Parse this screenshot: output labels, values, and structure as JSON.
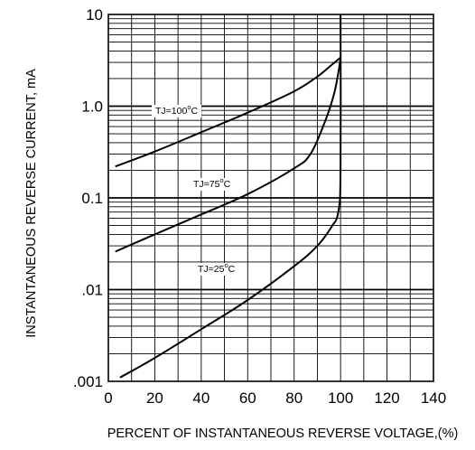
{
  "chart_data": {
    "type": "line",
    "title": "",
    "xlabel": "PERCENT OF INSTANTANEOUS REVERSE VOLTAGE,(%)",
    "ylabel": "INSTANTANEOUS REVERSE CURRENT, mA",
    "xlim": [
      0,
      140
    ],
    "ylim": [
      0.001,
      10
    ],
    "yscale": "log",
    "grid": true,
    "x_ticks": [
      "0",
      "20",
      "40",
      "60",
      "80",
      "100",
      "120",
      "140"
    ],
    "y_ticks": [
      ".001",
      ".01",
      "0.1",
      "1.0",
      "10"
    ],
    "series": [
      {
        "name": "TJ=100°C",
        "label_main": "TJ=100",
        "label_deg": "o",
        "label_unit": "C",
        "points": [
          [
            3,
            0.22
          ],
          [
            20,
            0.32
          ],
          [
            40,
            0.52
          ],
          [
            60,
            0.85
          ],
          [
            80,
            1.45
          ],
          [
            90,
            2.1
          ],
          [
            96,
            2.8
          ],
          [
            100,
            3.4
          ]
        ]
      },
      {
        "name": "TJ=75°C",
        "label_main": "TJ=75",
        "label_deg": "o",
        "label_unit": "C",
        "points": [
          [
            3,
            0.026
          ],
          [
            20,
            0.04
          ],
          [
            40,
            0.066
          ],
          [
            60,
            0.11
          ],
          [
            80,
            0.21
          ],
          [
            87,
            0.3
          ],
          [
            93,
            0.65
          ],
          [
            97,
            1.3
          ],
          [
            99,
            2.3
          ],
          [
            100,
            3.4
          ]
        ]
      },
      {
        "name": "TJ=25°C",
        "label_main": "TJ=25",
        "label_deg": "o",
        "label_unit": "C",
        "points": [
          [
            5,
            0.0011
          ],
          [
            20,
            0.0018
          ],
          [
            40,
            0.0037
          ],
          [
            60,
            0.0077
          ],
          [
            80,
            0.018
          ],
          [
            90,
            0.03
          ],
          [
            96,
            0.048
          ],
          [
            99,
            0.07
          ],
          [
            100,
            0.2
          ],
          [
            100,
            10
          ]
        ]
      }
    ],
    "line_color": "#000000",
    "grid_color": "#000000"
  }
}
